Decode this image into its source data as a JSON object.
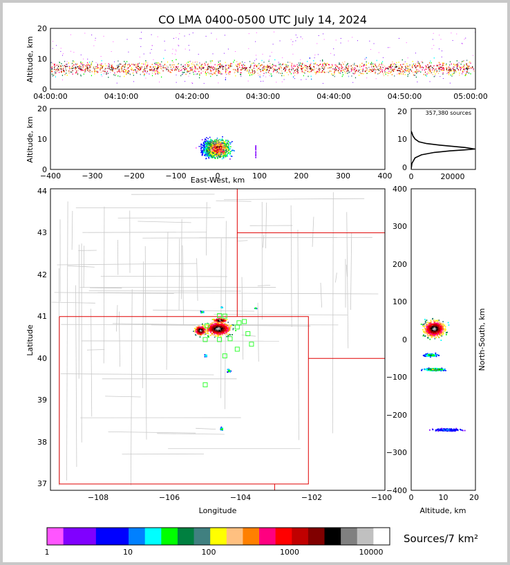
{
  "chart_data": {
    "type": "scatter",
    "title": "CO LMA 0400-0500 UTC July 14, 2024",
    "source_count_label": "357,380 sources",
    "time_height": {
      "ylabel": "Altitude, km",
      "ylim": [
        0,
        20
      ],
      "yticks": [
        "0",
        "10",
        "20"
      ],
      "xticks": [
        "04:00:00",
        "04:10:00",
        "04:20:00",
        "04:30:00",
        "04:40:00",
        "04:50:00",
        "05:00:00"
      ]
    },
    "ew_height": {
      "xlabel": "East-West, km",
      "ylabel": "Altitude, km",
      "xlim": [
        -400,
        400
      ],
      "ylim": [
        0,
        20
      ],
      "xticks": [
        "−400",
        "−300",
        "−200",
        "−100",
        "0",
        "100",
        "200",
        "300",
        "400"
      ],
      "yticks": [
        "0",
        "10",
        "20"
      ]
    },
    "altitude_histogram": {
      "xlim": [
        0,
        25000
      ],
      "ylim": [
        0,
        20
      ],
      "xticks": [
        "0",
        "20000"
      ],
      "yticks": [
        "0",
        "10",
        "20"
      ],
      "curve": [
        [
          0,
          0.2
        ],
        [
          300,
          2
        ],
        [
          1500,
          3.8
        ],
        [
          4000,
          4.8
        ],
        [
          9000,
          5.6
        ],
        [
          15000,
          6.1
        ],
        [
          20500,
          6.4
        ],
        [
          24800,
          6.7
        ],
        [
          21000,
          7.2
        ],
        [
          16000,
          7.6
        ],
        [
          11000,
          8
        ],
        [
          6000,
          8.5
        ],
        [
          3000,
          9.1
        ],
        [
          1500,
          10
        ],
        [
          700,
          11
        ],
        [
          300,
          12
        ],
        [
          0,
          12.6
        ]
      ]
    },
    "plan_view": {
      "xlabel": "Longitude",
      "ylabel": "Latitude",
      "xlim": [
        -109.3,
        -99.9
      ],
      "ylim": [
        36.85,
        44.05
      ],
      "xticks": [
        "−108",
        "−106",
        "−104",
        "−102",
        "−100"
      ],
      "yticks": [
        "37",
        "38",
        "39",
        "40",
        "41",
        "42",
        "43",
        "44"
      ],
      "stations": [
        [
          -104.55,
          41.02
        ],
        [
          -104.4,
          41.01
        ],
        [
          -104.0,
          40.85
        ],
        [
          -103.85,
          40.88
        ],
        [
          -104.05,
          40.75
        ],
        [
          -104.9,
          40.78
        ],
        [
          -104.95,
          40.45
        ],
        [
          -104.55,
          40.45
        ],
        [
          -104.25,
          40.47
        ],
        [
          -103.75,
          40.59
        ],
        [
          -103.65,
          40.34
        ],
        [
          -104.05,
          40.22
        ],
        [
          -104.4,
          40.06
        ],
        [
          -104.95,
          39.37
        ]
      ],
      "clusters": [
        {
          "lon": -104.6,
          "lat": 40.72,
          "rx": 0.55,
          "ry": 0.25
        },
        {
          "lon": -105.1,
          "lat": 40.68,
          "rx": 0.25,
          "ry": 0.18
        },
        {
          "lon": -104.55,
          "lat": 40.92,
          "rx": 0.3,
          "ry": 0.08
        },
        {
          "lon": -104.3,
          "lat": 39.72,
          "rx": 0.08,
          "ry": 0.06
        },
        {
          "lon": -104.5,
          "lat": 38.33,
          "rx": 0.06,
          "ry": 0.05
        },
        {
          "lon": -103.55,
          "lat": 41.21,
          "rx": 0.04,
          "ry": 0.02
        },
        {
          "lon": -104.5,
          "lat": 41.23,
          "rx": 0.03,
          "ry": 0.02
        },
        {
          "lon": -105.05,
          "lat": 41.12,
          "rx": 0.06,
          "ry": 0.04
        },
        {
          "lon": -104.95,
          "lat": 40.08,
          "rx": 0.05,
          "ry": 0.04
        }
      ]
    },
    "ns_height": {
      "xlabel": "Altitude, km",
      "ylabel": "North-South, km",
      "xlim": [
        0,
        20
      ],
      "ylim": [
        -400,
        400
      ],
      "xticks": [
        "0",
        "10",
        "20"
      ],
      "yticks": [
        "400",
        "300",
        "200",
        "100",
        "0",
        "−100",
        "−200",
        "−300",
        "−400"
      ]
    },
    "colorbar": {
      "label": "Sources/7 km²",
      "ticks": [
        "1",
        "10",
        "100",
        "1000",
        "10000"
      ],
      "colors": [
        "#ff55ff",
        "#8000ff",
        "#8000ff",
        "#0000ff",
        "#0000ff",
        "#0080ff",
        "#00ffff",
        "#00ff00",
        "#008040",
        "#408080",
        "#ffff00",
        "#ffc080",
        "#ff8000",
        "#ff0080",
        "#ff0000",
        "#c00000",
        "#800000",
        "#000000",
        "#808080",
        "#c0c0c0",
        "#ffffff"
      ]
    }
  }
}
